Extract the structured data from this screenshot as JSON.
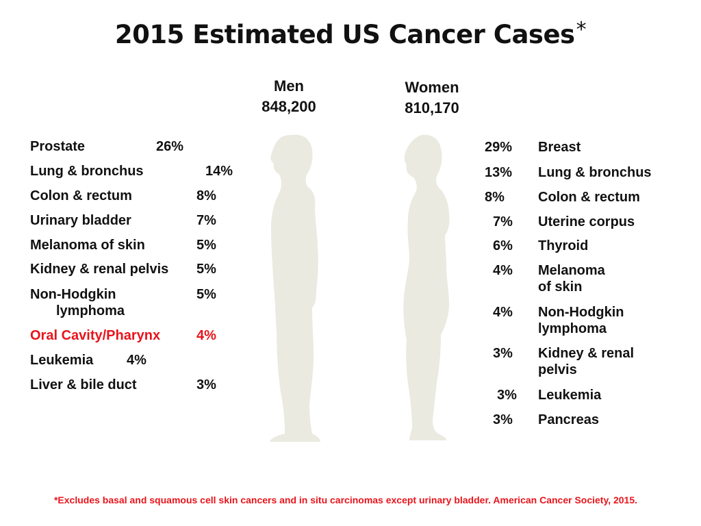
{
  "title": "2015 Estimated US Cancer Cases",
  "title_mark": "*",
  "men": {
    "label": "Men",
    "total": "848,200",
    "rows": [
      {
        "label": "Prostate",
        "pct": "26%"
      },
      {
        "label": "Lung & bronchus",
        "pct": "14%"
      },
      {
        "label": "Colon & rectum",
        "pct": "8%"
      },
      {
        "label": "Urinary bladder",
        "pct": "7%"
      },
      {
        "label": "Melanoma of skin",
        "pct": "5%"
      },
      {
        "label": "Kidney & renal pelvis",
        "pct": "5%"
      },
      {
        "label": "Non-Hodgkin",
        "label2": "lymphoma",
        "pct": "5%"
      },
      {
        "label": "Oral Cavity/Pharynx",
        "pct": "4%",
        "highlight": "#e8141b"
      },
      {
        "label": "Leukemia",
        "pct": "4%"
      },
      {
        "label": "Liver & bile duct",
        "pct": "3%"
      }
    ]
  },
  "women": {
    "label": "Women",
    "total": "810,170",
    "rows": [
      {
        "label": "Breast",
        "pct": "29%"
      },
      {
        "label": "Lung & bronchus",
        "pct": "13%"
      },
      {
        "label": "Colon & rectum",
        "pct": "8%"
      },
      {
        "label": "Uterine corpus",
        "pct": "7%"
      },
      {
        "label": "Thyroid",
        "pct": "6%"
      },
      {
        "label": "Melanoma",
        "label2": "of skin",
        "pct": "4%"
      },
      {
        "label": "Non-Hodgkin",
        "label2": "lymphoma",
        "pct": "4%"
      },
      {
        "label": "Kidney & renal",
        "label2": "pelvis",
        "pct": "3%"
      },
      {
        "label": "Leukemia",
        "pct": "3%"
      },
      {
        "label": "Pancreas",
        "pct": "3%"
      }
    ]
  },
  "footnote": "*Excludes basal and squamous cell skin cancers and in situ carcinomas except urinary bladder. American Cancer Society, 2015.",
  "colors": {
    "silhouette": "#ebeae0",
    "highlight": "#e8141b"
  }
}
